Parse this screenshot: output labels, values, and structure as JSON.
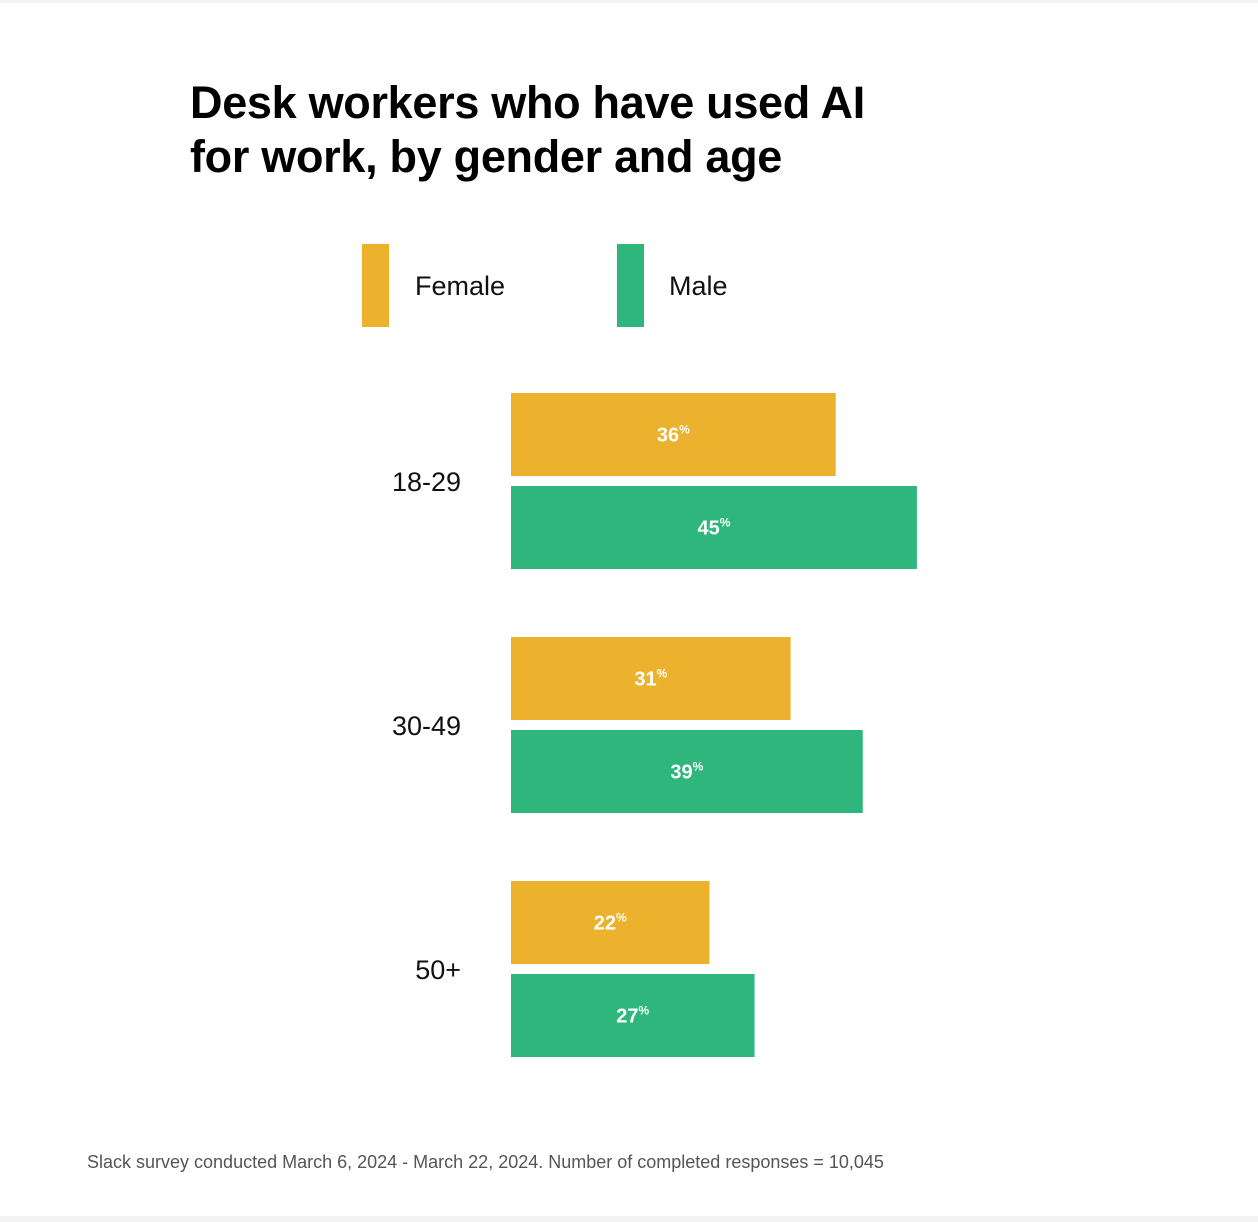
{
  "chart_data": {
    "type": "bar",
    "orientation": "horizontal",
    "title": "Desk workers who have used AI for work, by gender and age",
    "title_lines": [
      "Desk workers who have used AI",
      "for work, by gender and age"
    ],
    "categories": [
      "18-29",
      "30-49",
      "50+"
    ],
    "series": [
      {
        "name": "Female",
        "color": "#ECB22E",
        "values": [
          36,
          31,
          22
        ]
      },
      {
        "name": "Male",
        "color": "#2EB67D",
        "values": [
          45,
          39,
          27
        ]
      }
    ],
    "value_unit": "%",
    "legend_position": "top",
    "grid": false,
    "xlabel": "",
    "ylabel": ""
  },
  "footnote": "Slack survey conducted March 6, 2024 - March 22, 2024. Number of completed responses = 10,045"
}
